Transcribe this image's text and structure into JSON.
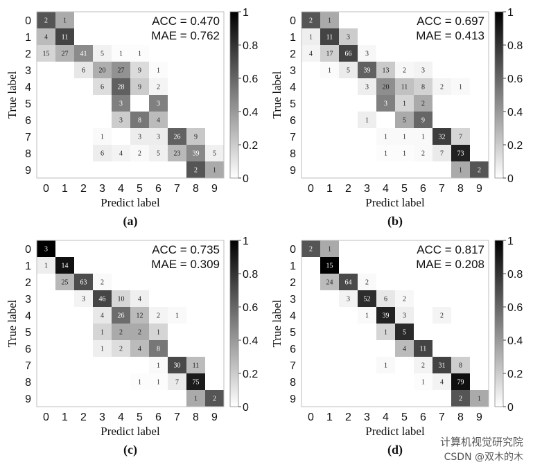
{
  "watermark": {
    "line1": "计算机视觉研究院",
    "line2": "CSDN @双木的木"
  },
  "chart_data": [
    {
      "panel_label": "(a)",
      "type": "heatmap",
      "xlabel": "Predict label",
      "ylabel": "True label",
      "x_ticks": [
        "0",
        "1",
        "2",
        "3",
        "4",
        "5",
        "6",
        "7",
        "8",
        "9"
      ],
      "y_ticks": [
        "0",
        "1",
        "2",
        "3",
        "4",
        "5",
        "6",
        "7",
        "8",
        "9"
      ],
      "metrics": [
        "ACC = 0.470",
        "MAE = 0.762"
      ],
      "colorbar": {
        "ticks": [
          "0",
          "0.2",
          "0.4",
          "0.6",
          "0.8",
          "1"
        ],
        "range": [
          0,
          1
        ],
        "colormap": "gray-reversed"
      },
      "cells": [
        [
          0,
          0,
          2
        ],
        [
          0,
          1,
          1
        ],
        [
          1,
          0,
          4
        ],
        [
          1,
          1,
          11
        ],
        [
          2,
          0,
          15
        ],
        [
          2,
          1,
          27
        ],
        [
          2,
          2,
          41
        ],
        [
          2,
          3,
          5
        ],
        [
          2,
          4,
          1
        ],
        [
          2,
          5,
          1
        ],
        [
          3,
          2,
          6
        ],
        [
          3,
          3,
          20
        ],
        [
          3,
          4,
          27
        ],
        [
          3,
          5,
          9
        ],
        [
          3,
          6,
          1
        ],
        [
          4,
          3,
          6
        ],
        [
          4,
          4,
          28
        ],
        [
          4,
          5,
          9
        ],
        [
          4,
          6,
          2
        ],
        [
          5,
          4,
          3
        ],
        [
          5,
          6,
          3
        ],
        [
          6,
          4,
          3
        ],
        [
          6,
          5,
          8
        ],
        [
          6,
          6,
          4
        ],
        [
          7,
          3,
          1
        ],
        [
          7,
          5,
          3
        ],
        [
          7,
          6,
          3
        ],
        [
          7,
          7,
          26
        ],
        [
          7,
          8,
          9
        ],
        [
          8,
          3,
          6
        ],
        [
          8,
          4,
          4
        ],
        [
          8,
          5,
          2
        ],
        [
          8,
          6,
          5
        ],
        [
          8,
          7,
          23
        ],
        [
          8,
          8,
          39
        ],
        [
          8,
          9,
          5
        ],
        [
          9,
          8,
          2
        ],
        [
          9,
          9,
          1
        ]
      ]
    },
    {
      "panel_label": "(b)",
      "type": "heatmap",
      "xlabel": "Predict label",
      "ylabel": "True label",
      "x_ticks": [
        "0",
        "1",
        "2",
        "3",
        "4",
        "5",
        "6",
        "7",
        "8",
        "9"
      ],
      "y_ticks": [
        "0",
        "1",
        "2",
        "3",
        "4",
        "5",
        "6",
        "7",
        "8",
        "9"
      ],
      "metrics": [
        "ACC = 0.697",
        "MAE = 0.413"
      ],
      "colorbar": {
        "ticks": [
          "0",
          "0.2",
          "0.4",
          "0.6",
          "0.8",
          "1"
        ],
        "range": [
          0,
          1
        ],
        "colormap": "gray-reversed"
      },
      "cells": [
        [
          0,
          0,
          2
        ],
        [
          0,
          1,
          1
        ],
        [
          1,
          0,
          1
        ],
        [
          1,
          1,
          11
        ],
        [
          1,
          2,
          3
        ],
        [
          2,
          0,
          4
        ],
        [
          2,
          1,
          17
        ],
        [
          2,
          2,
          66
        ],
        [
          2,
          3,
          3
        ],
        [
          3,
          1,
          1
        ],
        [
          3,
          2,
          5
        ],
        [
          3,
          3,
          39
        ],
        [
          3,
          4,
          13
        ],
        [
          3,
          5,
          2
        ],
        [
          3,
          6,
          3
        ],
        [
          4,
          3,
          3
        ],
        [
          4,
          4,
          20
        ],
        [
          4,
          5,
          11
        ],
        [
          4,
          6,
          8
        ],
        [
          4,
          7,
          2
        ],
        [
          4,
          8,
          1
        ],
        [
          5,
          4,
          3
        ],
        [
          5,
          5,
          1
        ],
        [
          5,
          6,
          2
        ],
        [
          6,
          3,
          1
        ],
        [
          6,
          5,
          5
        ],
        [
          6,
          6,
          9
        ],
        [
          7,
          4,
          1
        ],
        [
          7,
          5,
          1
        ],
        [
          7,
          6,
          1
        ],
        [
          7,
          7,
          32
        ],
        [
          7,
          8,
          7
        ],
        [
          8,
          4,
          1
        ],
        [
          8,
          5,
          1
        ],
        [
          8,
          6,
          2
        ],
        [
          8,
          7,
          7
        ],
        [
          8,
          8,
          73
        ],
        [
          9,
          8,
          1
        ],
        [
          9,
          9,
          2
        ]
      ]
    },
    {
      "panel_label": "(c)",
      "type": "heatmap",
      "xlabel": "Predict label",
      "ylabel": "True label",
      "x_ticks": [
        "0",
        "1",
        "2",
        "3",
        "4",
        "5",
        "6",
        "7",
        "8",
        "9"
      ],
      "y_ticks": [
        "0",
        "1",
        "2",
        "3",
        "4",
        "5",
        "6",
        "7",
        "8",
        "9"
      ],
      "metrics": [
        "ACC = 0.735",
        "MAE = 0.309"
      ],
      "colorbar": {
        "ticks": [
          "0",
          "0.2",
          "0.4",
          "0.6",
          "0.8",
          "1"
        ],
        "range": [
          0,
          1
        ],
        "colormap": "gray-reversed"
      },
      "cells": [
        [
          0,
          0,
          3
        ],
        [
          1,
          0,
          1
        ],
        [
          1,
          1,
          14
        ],
        [
          2,
          1,
          25
        ],
        [
          2,
          2,
          63
        ],
        [
          2,
          3,
          2
        ],
        [
          3,
          2,
          3
        ],
        [
          3,
          3,
          46
        ],
        [
          3,
          4,
          10
        ],
        [
          3,
          5,
          4
        ],
        [
          4,
          3,
          4
        ],
        [
          4,
          4,
          26
        ],
        [
          4,
          5,
          12
        ],
        [
          4,
          6,
          2
        ],
        [
          4,
          7,
          1
        ],
        [
          5,
          3,
          1
        ],
        [
          5,
          4,
          2
        ],
        [
          5,
          5,
          2
        ],
        [
          5,
          6,
          1
        ],
        [
          6,
          3,
          1
        ],
        [
          6,
          4,
          2
        ],
        [
          6,
          5,
          4
        ],
        [
          6,
          6,
          8
        ],
        [
          7,
          6,
          1
        ],
        [
          7,
          7,
          30
        ],
        [
          7,
          8,
          11
        ],
        [
          8,
          5,
          1
        ],
        [
          8,
          6,
          1
        ],
        [
          8,
          7,
          7
        ],
        [
          8,
          8,
          75
        ],
        [
          9,
          8,
          1
        ],
        [
          9,
          9,
          2
        ]
      ]
    },
    {
      "panel_label": "(d)",
      "type": "heatmap",
      "xlabel": "Predict label",
      "ylabel": "True label",
      "x_ticks": [
        "0",
        "1",
        "2",
        "3",
        "4",
        "5",
        "6",
        "7",
        "8",
        "9"
      ],
      "y_ticks": [
        "0",
        "1",
        "2",
        "3",
        "4",
        "5",
        "6",
        "7",
        "8",
        "9"
      ],
      "metrics": [
        "ACC = 0.817",
        "MAE = 0.208"
      ],
      "colorbar": {
        "ticks": [
          "0",
          "0.2",
          "0.4",
          "0.6",
          "0.8",
          "1"
        ],
        "range": [
          0,
          1
        ],
        "colormap": "gray-reversed"
      },
      "cells": [
        [
          0,
          0,
          2
        ],
        [
          0,
          1,
          1
        ],
        [
          1,
          1,
          15
        ],
        [
          2,
          1,
          24
        ],
        [
          2,
          2,
          64
        ],
        [
          2,
          3,
          2
        ],
        [
          3,
          2,
          3
        ],
        [
          3,
          3,
          52
        ],
        [
          3,
          4,
          6
        ],
        [
          3,
          5,
          2
        ],
        [
          4,
          3,
          1
        ],
        [
          4,
          4,
          39
        ],
        [
          4,
          5,
          3
        ],
        [
          4,
          7,
          2
        ],
        [
          5,
          4,
          1
        ],
        [
          5,
          5,
          5
        ],
        [
          6,
          5,
          4
        ],
        [
          6,
          6,
          11
        ],
        [
          7,
          4,
          1
        ],
        [
          7,
          6,
          2
        ],
        [
          7,
          7,
          31
        ],
        [
          7,
          8,
          8
        ],
        [
          8,
          6,
          1
        ],
        [
          8,
          7,
          4
        ],
        [
          8,
          8,
          79
        ],
        [
          9,
          8,
          2
        ],
        [
          9,
          9,
          1
        ]
      ]
    }
  ]
}
